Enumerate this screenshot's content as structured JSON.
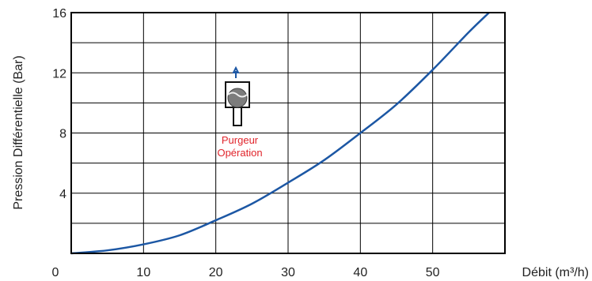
{
  "chart_data": {
    "type": "line",
    "title": "",
    "xlabel": "Débit (m³/h)",
    "ylabel": "Pression Différentielle (Bar)",
    "xlim": [
      0,
      60
    ],
    "ylim": [
      0,
      16
    ],
    "x_ticks": [
      0,
      10,
      20,
      30,
      40,
      50
    ],
    "y_ticks": [
      4,
      8,
      12,
      16
    ],
    "x_gridlines": [
      10,
      20,
      30,
      40,
      50
    ],
    "y_gridlines": [
      2,
      4,
      6,
      8,
      10,
      12,
      14
    ],
    "grid": true,
    "series": [
      {
        "color": "#1c57a4",
        "x": [
          0,
          5,
          10,
          15,
          20,
          25,
          30,
          35,
          40,
          45,
          50,
          55,
          57.8
        ],
        "y": [
          0,
          0.2,
          0.6,
          1.2,
          2.2,
          3.3,
          4.7,
          6.2,
          8.0,
          9.9,
          12.2,
          14.7,
          16.0
        ]
      }
    ],
    "annotation": {
      "lines": [
        "Purgeur",
        "Opération"
      ],
      "color": "#e0242b",
      "icon": "steam-trap-float-icon"
    }
  }
}
